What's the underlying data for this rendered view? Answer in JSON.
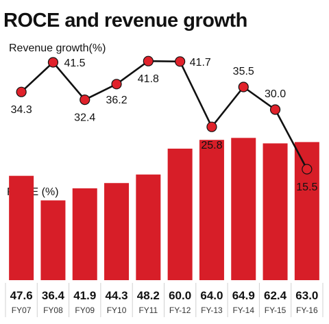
{
  "title": "ROCE and revenue growth",
  "chart_data": [
    {
      "type": "line",
      "title": "Revenue growth(%)",
      "categories": [
        "FY07",
        "FY08",
        "FY09",
        "FY10",
        "FY11",
        "FY-12",
        "FY-13",
        "FY-14",
        "FY-15",
        "FY-16"
      ],
      "values": [
        34.3,
        41.5,
        32.4,
        36.2,
        41.8,
        41.7,
        25.8,
        35.5,
        30.0,
        15.5
      ],
      "value_labels": [
        "34.3",
        "41.5",
        "32.4",
        "36.2",
        "41.8",
        "41.7",
        "25.8",
        "35.5",
        "30.0",
        "15.5"
      ],
      "ylim": [
        15,
        43
      ],
      "grid": false,
      "colors": {
        "marker": "#e0222b",
        "line": "#111111"
      }
    },
    {
      "type": "bar",
      "title": "ROCE (%)",
      "categories": [
        "FY07",
        "FY08",
        "FY09",
        "FY10",
        "FY11",
        "FY-12",
        "FY-13",
        "FY-14",
        "FY-15",
        "FY-16"
      ],
      "values": [
        47.6,
        36.4,
        41.9,
        44.3,
        48.2,
        60.0,
        64.0,
        64.9,
        62.4,
        63.0
      ],
      "value_labels": [
        "47.6",
        "36.4",
        "41.9",
        "44.3",
        "48.2",
        "60.0",
        "64.0",
        "64.9",
        "62.4",
        "63.0"
      ],
      "ylim": [
        0,
        70
      ],
      "grid": false,
      "colors": {
        "bar": "#d71e28",
        "separator": "#d0d0d0"
      }
    }
  ]
}
